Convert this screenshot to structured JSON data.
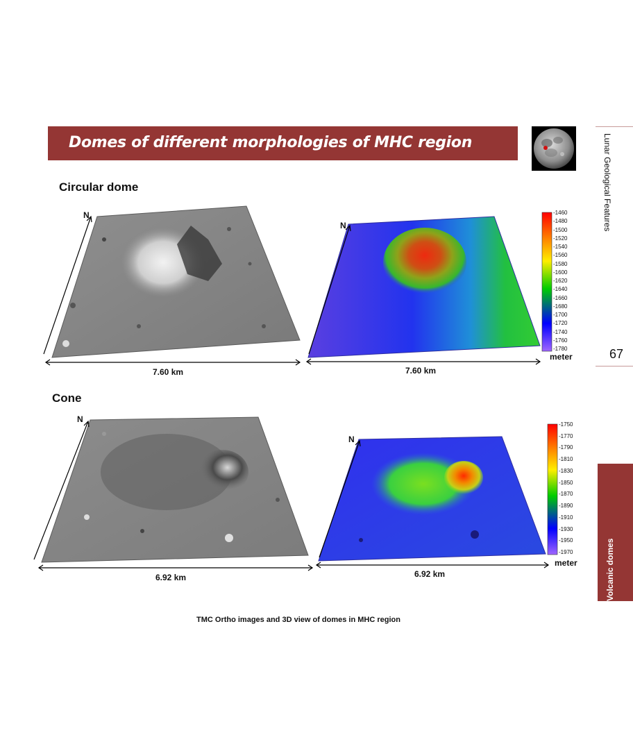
{
  "header": {
    "title": "Domes of different morphologies of MHC region"
  },
  "sidebar": {
    "running_title": "Lunar Geological Features",
    "page_number": "67",
    "section_tab": "Volcanic domes"
  },
  "panels": {
    "circular": {
      "heading": "Circular dome",
      "north_label": "N",
      "north_label_3d": "N",
      "scale_left": "7.60 km",
      "scale_right": "7.60 km",
      "legend_unit": "meter",
      "legend_ticks": [
        "-1460",
        "-1480",
        "-1500",
        "-1520",
        "-1540",
        "-1560",
        "-1580",
        "-1600",
        "-1620",
        "-1640",
        "-1660",
        "-1680",
        "-1700",
        "-1720",
        "-1740",
        "-1760",
        "-1780"
      ]
    },
    "cone": {
      "heading": "Cone",
      "north_label": "N",
      "north_label_3d": "N",
      "scale_left": "6.92 km",
      "scale_right": "6.92 km",
      "legend_unit": "meter",
      "legend_ticks": [
        "-1750",
        "-1770",
        "-1790",
        "-1810",
        "-1830",
        "-1850",
        "-1870",
        "-1890",
        "-1910",
        "-1930",
        "-1950",
        "-1970"
      ]
    }
  },
  "caption": "TMC Ortho images and 3D view of domes in MHC region",
  "colors": {
    "accent": "#943634",
    "colorbar": [
      "#ff0000",
      "#ff7f00",
      "#ffff00",
      "#00d000",
      "#0000ff",
      "#9b59ff"
    ]
  }
}
